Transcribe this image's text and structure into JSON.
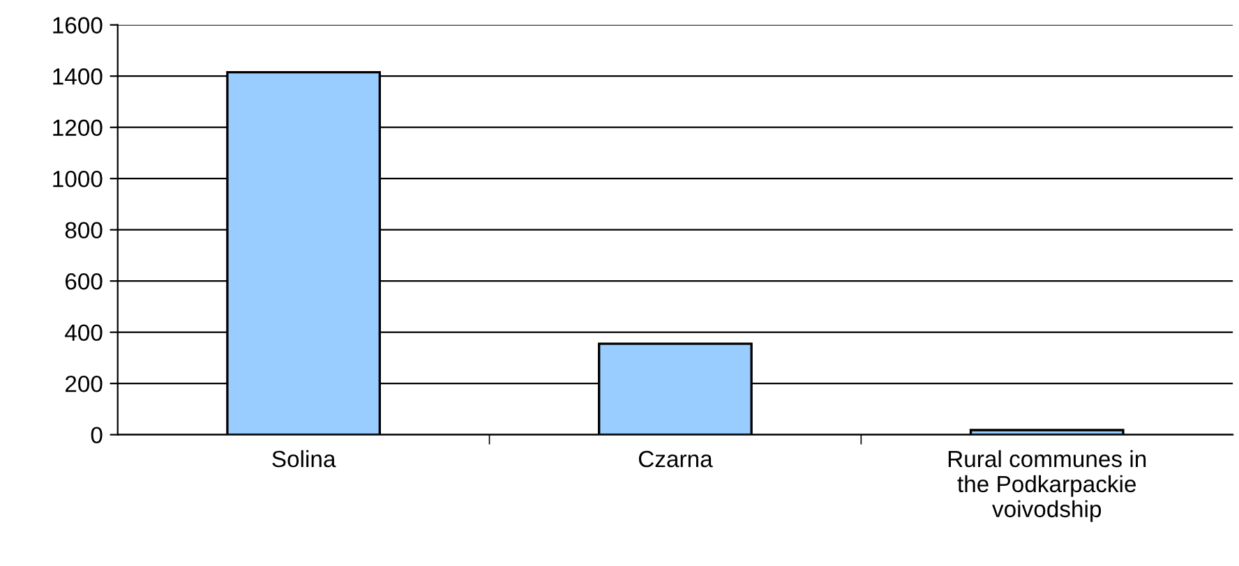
{
  "chart_data": {
    "type": "bar",
    "categories": [
      "Solina",
      "Czarna",
      "Rural communes in\nthe Podkarpackie\nvoivodship"
    ],
    "values": [
      1415,
      355,
      18
    ],
    "color": "#99ccff",
    "ylim": [
      0,
      1600
    ],
    "yticks": [
      0,
      200,
      400,
      600,
      800,
      1000,
      1200,
      1400,
      1600
    ],
    "grid": "y"
  }
}
